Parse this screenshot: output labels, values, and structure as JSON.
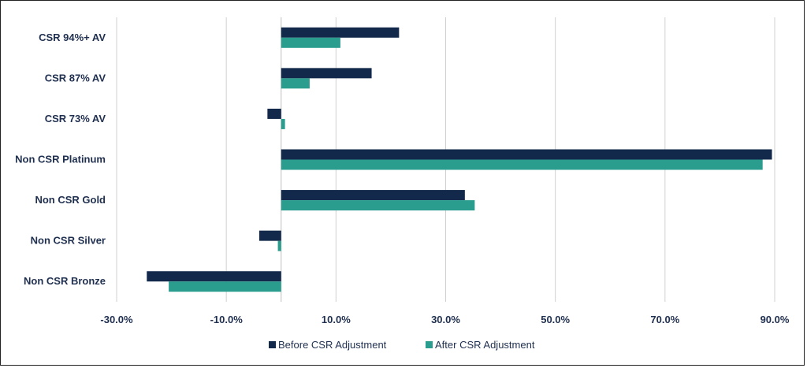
{
  "chart_data": {
    "type": "bar",
    "orientation": "horizontal",
    "title": "",
    "xlabel": "",
    "ylabel": "",
    "categories": [
      "CSR 94%+ AV",
      "CSR 87% AV",
      "CSR 73% AV",
      "Non CSR Platinum",
      "Non CSR Gold",
      "Non CSR Silver",
      "Non CSR Bronze"
    ],
    "series": [
      {
        "name": "Before CSR Adjustment",
        "color": "#13294b",
        "values": [
          21.5,
          16.5,
          -2.5,
          89.5,
          33.5,
          -4.0,
          -24.5
        ]
      },
      {
        "name": "After CSR Adjustment",
        "color": "#2a9d8f",
        "values": [
          10.8,
          5.2,
          0.7,
          87.8,
          35.3,
          -0.6,
          -20.5
        ]
      }
    ],
    "xlim": [
      -30,
      90
    ],
    "xticks": [
      -30,
      -10,
      10,
      30,
      50,
      70,
      90
    ],
    "xtick_labels": [
      "-30.0%",
      "-10.0%",
      "10.0%",
      "30.0%",
      "50.0%",
      "70.0%",
      "90.0%"
    ],
    "grid": true,
    "legend_position": "bottom"
  }
}
